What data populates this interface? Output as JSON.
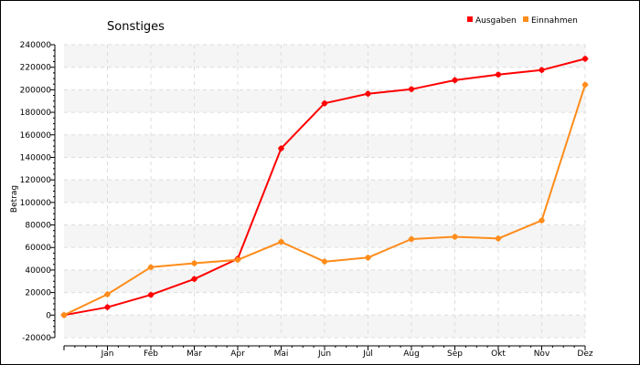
{
  "chart_data": {
    "type": "line",
    "title": "Sonstiges",
    "ylabel": "Betrag",
    "xlabel": "",
    "categories": [
      "",
      "Jan",
      "Feb",
      "Mar",
      "Apr",
      "Mai",
      "Jun",
      "Jul",
      "Aug",
      "Sep",
      "Okt",
      "Nov",
      "Dez"
    ],
    "ylim": [
      -20000,
      240000
    ],
    "yticks": [
      -20000,
      0,
      20000,
      40000,
      60000,
      80000,
      100000,
      120000,
      140000,
      160000,
      180000,
      200000,
      220000,
      240000
    ],
    "grid": true,
    "legend_position": "top-right",
    "series": [
      {
        "name": "Ausgaben",
        "color": "#ff0000",
        "values": [
          0,
          7000,
          18000,
          32000,
          50000,
          148000,
          188000,
          196500,
          200500,
          208500,
          213500,
          217500,
          227500
        ]
      },
      {
        "name": "Einnahmen",
        "color": "#ff8c1a",
        "values": [
          0,
          18500,
          42500,
          46000,
          49000,
          65000,
          47500,
          51000,
          67500,
          69500,
          68000,
          84000,
          204500
        ]
      }
    ]
  }
}
